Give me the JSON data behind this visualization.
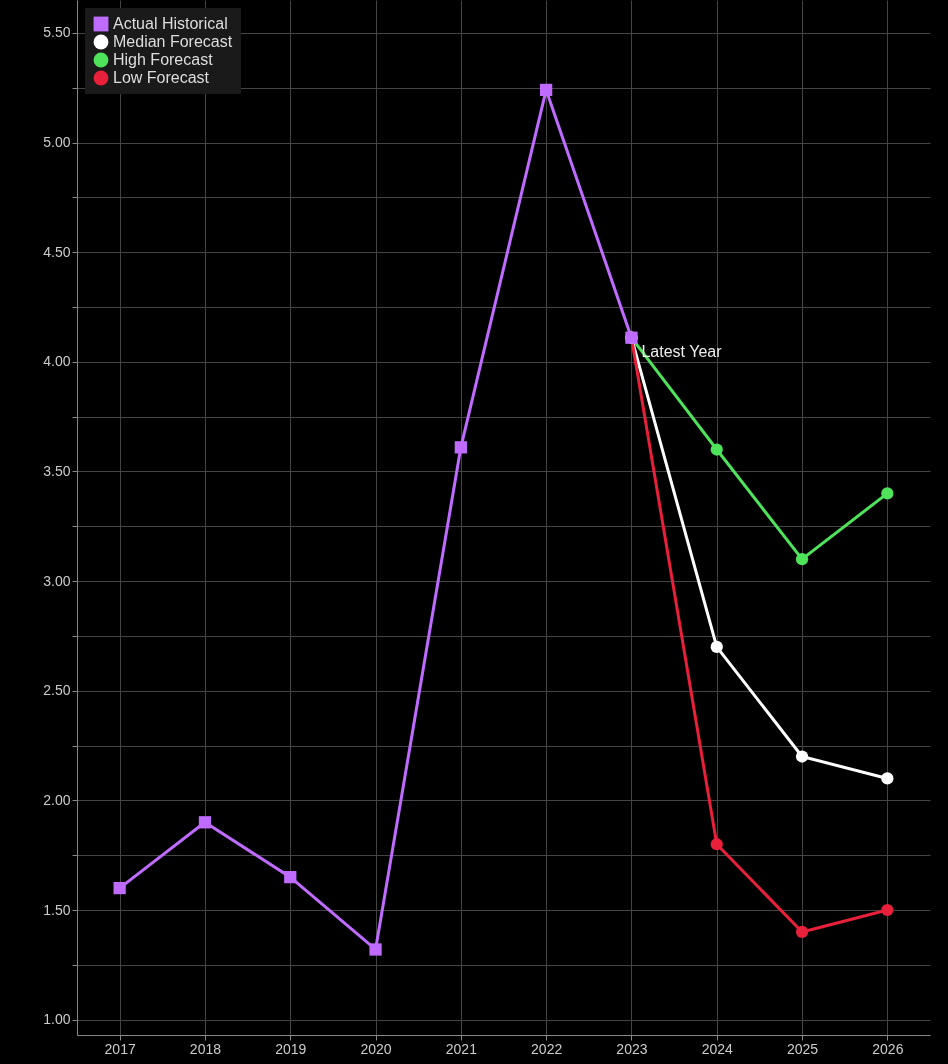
{
  "chart_data": {
    "type": "line",
    "categories": [
      "2017",
      "2018",
      "2019",
      "2020",
      "2021",
      "2022",
      "2023",
      "2024",
      "2025",
      "2026"
    ],
    "series": [
      {
        "name": "Actual Historical",
        "color": "#bf6bff",
        "marker": "square",
        "values": [
          1.6,
          1.9,
          1.65,
          1.32,
          3.61,
          5.24,
          4.11,
          null,
          null,
          null
        ]
      },
      {
        "name": "Median Forecast",
        "color": "#ffffff",
        "marker": "circle",
        "values": [
          null,
          null,
          null,
          null,
          null,
          null,
          4.11,
          2.7,
          2.2,
          2.1
        ]
      },
      {
        "name": "High Forecast",
        "color": "#4ee35a",
        "marker": "circle",
        "values": [
          null,
          null,
          null,
          null,
          null,
          null,
          4.11,
          3.6,
          3.1,
          3.4
        ]
      },
      {
        "name": "Low Forecast",
        "color": "#e8203a",
        "marker": "circle",
        "values": [
          null,
          null,
          null,
          null,
          null,
          null,
          4.11,
          1.8,
          1.4,
          1.5
        ]
      }
    ],
    "ylim": [
      0.93,
      5.65
    ],
    "yticks": [
      {
        "value": 1,
        "label": "1.00"
      },
      {
        "value": 1.25,
        "label": null
      },
      {
        "value": 1.5,
        "label": "1.50"
      },
      {
        "value": 1.75,
        "label": null
      },
      {
        "value": 2,
        "label": "2.00"
      },
      {
        "value": 2.25,
        "label": null
      },
      {
        "value": 2.5,
        "label": "2.50"
      },
      {
        "value": 2.75,
        "label": null
      },
      {
        "value": 3,
        "label": "3.00"
      },
      {
        "value": 3.25,
        "label": null
      },
      {
        "value": 3.5,
        "label": "3.50"
      },
      {
        "value": 3.75,
        "label": null
      },
      {
        "value": 4,
        "label": "4.00"
      },
      {
        "value": 4.25,
        "label": null
      },
      {
        "value": 4.5,
        "label": "4.50"
      },
      {
        "value": 4.75,
        "label": null
      },
      {
        "value": 5,
        "label": "5.00"
      },
      {
        "value": 5.25,
        "label": null
      },
      {
        "value": 5.5,
        "label": "5.50"
      }
    ],
    "annotations": [
      {
        "text": "Latest Year",
        "x": "2023",
        "y": 4.11
      }
    ],
    "grid": true,
    "legend": "top left"
  }
}
